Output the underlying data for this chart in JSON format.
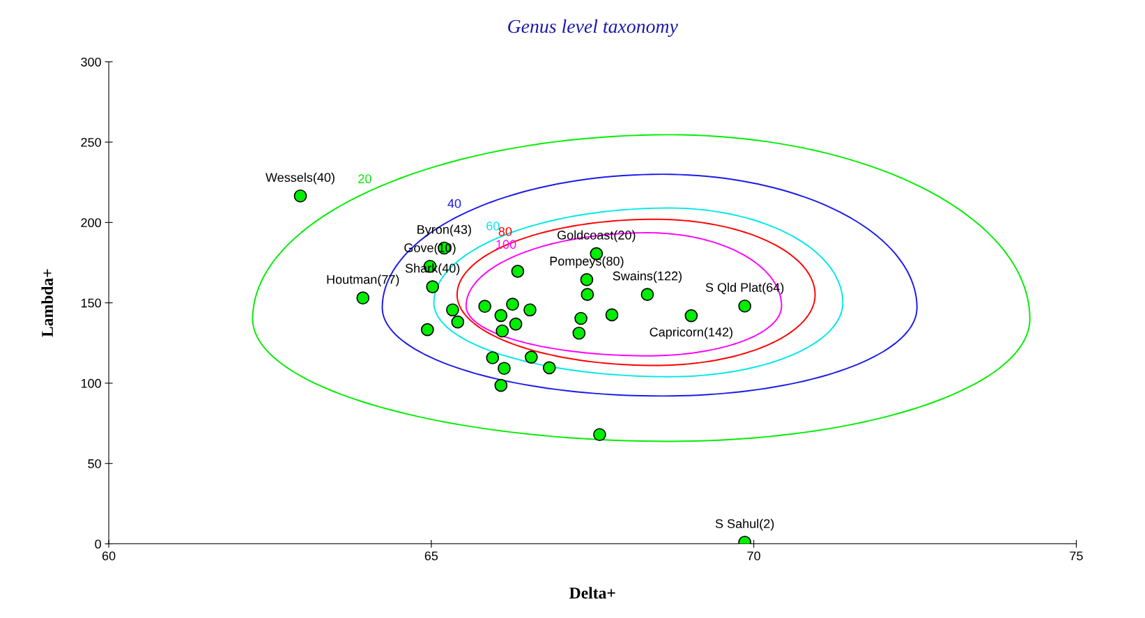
{
  "chart_data": {
    "type": "scatter",
    "title": "Genus level taxonomy",
    "xlabel": "Delta+",
    "ylabel": "Lambda+",
    "xlim": [
      60,
      75
    ],
    "xticks": [
      60,
      65,
      70,
      75
    ],
    "ylim": [
      0,
      300
    ],
    "yticks": [
      0,
      50,
      100,
      150,
      200,
      250,
      300
    ],
    "grid": false,
    "legend": false,
    "series": [
      {
        "color": "#00ee00",
        "marker": "circle",
        "x": [
          62.97,
          63.94,
          65.2,
          64.98,
          65.02,
          66.34,
          67.56,
          67.41,
          67.42,
          68.35,
          67.8,
          67.32,
          67.29,
          64.94,
          65.33,
          65.41,
          65.83,
          66.08,
          66.1,
          66.31,
          66.53,
          66.26,
          65.95,
          66.13,
          66.55,
          66.83,
          66.08,
          69.03,
          69.86,
          67.61,
          69.86
        ],
        "values": [
          216.5,
          153,
          184.1,
          172.7,
          160,
          169.6,
          180.6,
          164.4,
          155.2,
          155.2,
          142.5,
          140.3,
          131.1,
          133.3,
          145.6,
          138.1,
          147.8,
          142.1,
          132.5,
          136.8,
          145.6,
          149.1,
          115.8,
          109.2,
          116.2,
          109.6,
          98.6,
          142,
          148,
          68,
          1
        ]
      }
    ],
    "annotations": [
      "20",
      "40",
      "60",
      "80",
      "100",
      {
        "text": "Wessels(40)",
        "x": 62.97,
        "y": 216.5
      },
      {
        "text": "Houtman(77)",
        "x": 63.94,
        "y": 153
      },
      {
        "text": "Byron(43)",
        "x": 65.2,
        "y": 184.1
      },
      {
        "text": "Gove(10)",
        "x": 64.98,
        "y": 172.7
      },
      {
        "text": "Shark(40)",
        "x": 65.02,
        "y": 160
      },
      {
        "text": "Goldcoast(20)",
        "x": 67.56,
        "y": 180.6
      },
      {
        "text": "Pompeys(80)",
        "x": 67.41,
        "y": 164.4
      },
      {
        "text": "Swains(122)",
        "x": 68.35,
        "y": 155.2
      },
      {
        "text": "S Qld Plat(64)",
        "x": 69.86,
        "y": 148
      },
      {
        "text": "Capricorn(142)",
        "x": 69.03,
        "y": 142
      },
      {
        "text": "S Sahul(2)",
        "x": 69.86,
        "y": 1
      }
    ]
  }
}
